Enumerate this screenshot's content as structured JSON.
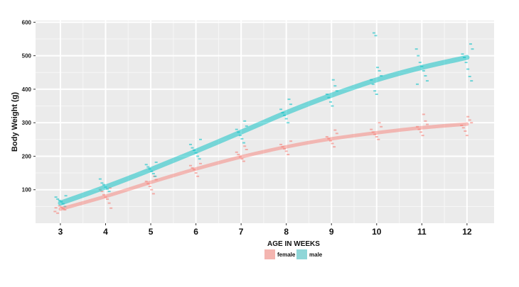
{
  "chart_data": {
    "type": "scatter",
    "title": "",
    "xlabel": "AGE IN WEEKS",
    "ylabel": "Body Weight (g)",
    "x_ticks": [
      "3",
      "4",
      "5",
      "6",
      "7",
      "8",
      "9",
      "10",
      "11",
      "12"
    ],
    "y_ticks": [
      "600",
      "500",
      "400",
      "300",
      "200",
      "100"
    ],
    "xlim": [
      2.45,
      12.6
    ],
    "ylim": [
      0,
      605
    ],
    "grid": true,
    "legend_position": "bottom",
    "series": [
      {
        "name": "female",
        "color": "#f8766d",
        "trend_x": [
          3,
          4,
          5,
          6,
          7,
          8,
          9,
          10,
          11,
          12
        ],
        "trend_y": [
          42,
          80,
          122,
          162,
          198,
          228,
          252,
          270,
          285,
          296
        ],
        "points": [
          [
            3,
            35
          ],
          [
            3,
            40
          ],
          [
            3,
            44
          ],
          [
            3,
            48
          ],
          [
            3,
            52
          ],
          [
            3,
            30
          ],
          [
            3,
            46
          ],
          [
            4,
            45
          ],
          [
            4,
            60
          ],
          [
            4,
            72
          ],
          [
            4,
            78
          ],
          [
            4,
            85
          ],
          [
            4,
            95
          ],
          [
            4,
            100
          ],
          [
            4,
            105
          ],
          [
            5,
            88
          ],
          [
            5,
            100
          ],
          [
            5,
            110
          ],
          [
            5,
            118
          ],
          [
            5,
            125
          ],
          [
            5,
            130
          ],
          [
            5,
            140
          ],
          [
            6,
            140
          ],
          [
            6,
            150
          ],
          [
            6,
            160
          ],
          [
            6,
            165
          ],
          [
            6,
            172
          ],
          [
            6,
            178
          ],
          [
            7,
            185
          ],
          [
            7,
            192
          ],
          [
            7,
            198
          ],
          [
            7,
            205
          ],
          [
            7,
            212
          ],
          [
            7,
            220
          ],
          [
            7,
            230
          ],
          [
            8,
            205
          ],
          [
            8,
            215
          ],
          [
            8,
            222
          ],
          [
            8,
            228
          ],
          [
            8,
            235
          ],
          [
            8,
            245
          ],
          [
            9,
            228
          ],
          [
            9,
            238
          ],
          [
            9,
            246
          ],
          [
            9,
            252
          ],
          [
            9,
            258
          ],
          [
            9,
            268
          ],
          [
            9,
            278
          ],
          [
            10,
            250
          ],
          [
            10,
            258
          ],
          [
            10,
            265
          ],
          [
            10,
            272
          ],
          [
            10,
            280
          ],
          [
            10,
            288
          ],
          [
            10,
            300
          ],
          [
            11,
            262
          ],
          [
            11,
            272
          ],
          [
            11,
            280
          ],
          [
            11,
            288
          ],
          [
            11,
            295
          ],
          [
            11,
            305
          ],
          [
            11,
            325
          ],
          [
            12,
            262
          ],
          [
            12,
            275
          ],
          [
            12,
            285
          ],
          [
            12,
            292
          ],
          [
            12,
            300
          ],
          [
            12,
            308
          ],
          [
            12,
            318
          ]
        ]
      },
      {
        "name": "male",
        "color": "#00bfc4",
        "trend_x": [
          3,
          4,
          5,
          6,
          7,
          8,
          9,
          10,
          11,
          12
        ],
        "trend_y": [
          60,
          108,
          160,
          215,
          272,
          330,
          382,
          428,
          465,
          495
        ],
        "points": [
          [
            3,
            50
          ],
          [
            3,
            58
          ],
          [
            3,
            64
          ],
          [
            3,
            68
          ],
          [
            3,
            72
          ],
          [
            3,
            78
          ],
          [
            3,
            82
          ],
          [
            4,
            95
          ],
          [
            4,
            102
          ],
          [
            4,
            108
          ],
          [
            4,
            115
          ],
          [
            4,
            120
          ],
          [
            4,
            132
          ],
          [
            5,
            140
          ],
          [
            5,
            148
          ],
          [
            5,
            155
          ],
          [
            5,
            162
          ],
          [
            5,
            168
          ],
          [
            5,
            175
          ],
          [
            5,
            182
          ],
          [
            6,
            192
          ],
          [
            6,
            200
          ],
          [
            6,
            210
          ],
          [
            6,
            218
          ],
          [
            6,
            225
          ],
          [
            6,
            235
          ],
          [
            6,
            250
          ],
          [
            7,
            240
          ],
          [
            7,
            252
          ],
          [
            7,
            262
          ],
          [
            7,
            272
          ],
          [
            7,
            280
          ],
          [
            7,
            290
          ],
          [
            7,
            305
          ],
          [
            8,
            300
          ],
          [
            8,
            312
          ],
          [
            8,
            322
          ],
          [
            8,
            330
          ],
          [
            8,
            340
          ],
          [
            8,
            355
          ],
          [
            8,
            370
          ],
          [
            9,
            350
          ],
          [
            9,
            362
          ],
          [
            9,
            375
          ],
          [
            9,
            385
          ],
          [
            9,
            395
          ],
          [
            9,
            410
          ],
          [
            9,
            428
          ],
          [
            10,
            385
          ],
          [
            10,
            395
          ],
          [
            10,
            415
          ],
          [
            10,
            428
          ],
          [
            10,
            440
          ],
          [
            10,
            455
          ],
          [
            10,
            465
          ],
          [
            10,
            560
          ],
          [
            10,
            568
          ],
          [
            11,
            415
          ],
          [
            11,
            425
          ],
          [
            11,
            440
          ],
          [
            11,
            455
          ],
          [
            11,
            468
          ],
          [
            11,
            480
          ],
          [
            11,
            500
          ],
          [
            11,
            520
          ],
          [
            12,
            425
          ],
          [
            12,
            438
          ],
          [
            12,
            460
          ],
          [
            12,
            480
          ],
          [
            12,
            495
          ],
          [
            12,
            505
          ],
          [
            12,
            520
          ],
          [
            12,
            535
          ]
        ]
      }
    ]
  }
}
